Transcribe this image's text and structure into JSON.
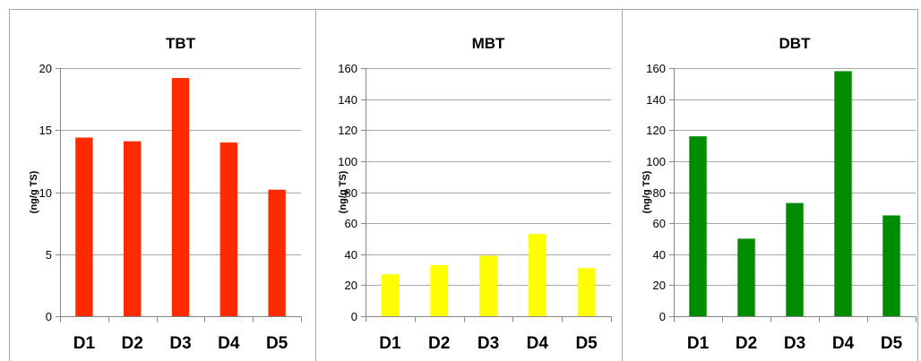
{
  "chart_data": [
    {
      "type": "bar",
      "title": "TBT",
      "ylabel": "(ng/g TS)",
      "xlabel": "",
      "categories": [
        "D1",
        "D2",
        "D3",
        "D4",
        "D5"
      ],
      "values": [
        14.4,
        14.1,
        19.2,
        14.0,
        10.2
      ],
      "ylim": [
        0,
        20
      ],
      "yticks": [
        0,
        5,
        10,
        15,
        20
      ],
      "color": "#ff2a00",
      "grid": true,
      "legend": "none"
    },
    {
      "type": "bar",
      "title": "MBT",
      "ylabel": "(ng/g TS)",
      "xlabel": "",
      "categories": [
        "D1",
        "D2",
        "D3",
        "D4",
        "D5"
      ],
      "values": [
        27,
        33,
        39,
        53,
        31
      ],
      "ylim": [
        0,
        160
      ],
      "yticks": [
        0,
        20,
        40,
        60,
        80,
        100,
        120,
        140,
        160
      ],
      "color": "#ffff00",
      "grid": true,
      "legend": "none"
    },
    {
      "type": "bar",
      "title": "DBT",
      "ylabel": "(ng/g TS)",
      "xlabel": "",
      "categories": [
        "D1",
        "D2",
        "D3",
        "D4",
        "D5"
      ],
      "values": [
        116,
        50,
        73,
        158,
        65
      ],
      "ylim": [
        0,
        160
      ],
      "yticks": [
        0,
        20,
        40,
        60,
        80,
        100,
        120,
        140,
        160
      ],
      "color": "#008c00",
      "grid": true,
      "legend": "none"
    }
  ]
}
